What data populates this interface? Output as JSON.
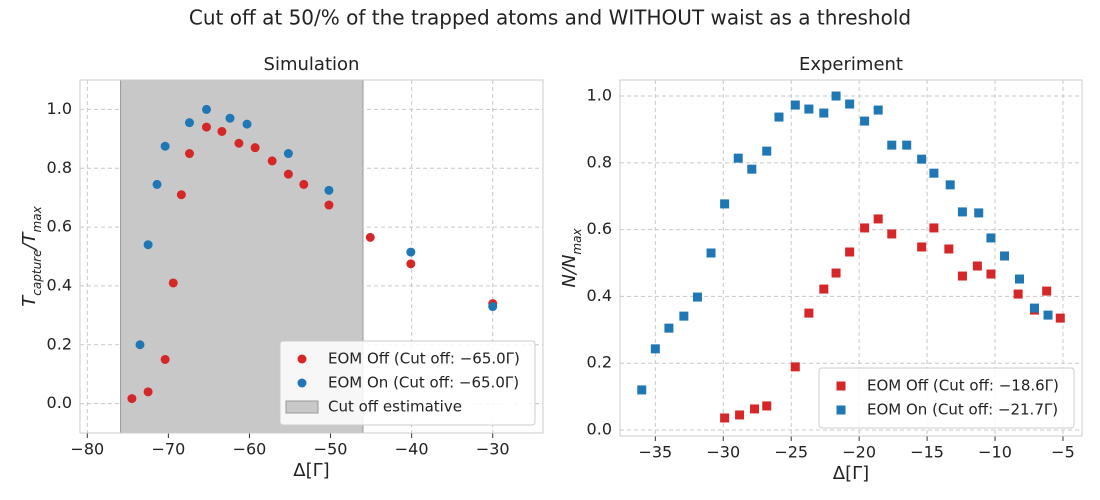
{
  "suptitle": "Cut off at 50/% of the trapped atoms and WITHOUT waist as a threshold",
  "chart_data": [
    {
      "type": "scatter",
      "title": "Simulation",
      "xlabel": "Δ[Γ]",
      "ylabel": [
        "T",
        "capture",
        "/T",
        "max"
      ],
      "xlim": [
        -80.9,
        -23.8
      ],
      "ylim": [
        -0.1,
        1.1
      ],
      "xticks": [
        {
          "value": -80,
          "label": "−80"
        },
        {
          "value": -70,
          "label": "−70"
        },
        {
          "value": -60,
          "label": "−60"
        },
        {
          "value": -50,
          "label": "−50"
        },
        {
          "value": -40,
          "label": "−40"
        },
        {
          "value": -30,
          "label": "−30"
        }
      ],
      "yticks": [
        {
          "value": 0,
          "label": "0.0"
        },
        {
          "value": 0.2,
          "label": "0.2"
        },
        {
          "value": 0.4,
          "label": "0.4"
        },
        {
          "value": 0.6,
          "label": "0.6"
        },
        {
          "value": 0.8,
          "label": "0.8"
        },
        {
          "value": 1.0,
          "label": "1.0"
        }
      ],
      "grid": true,
      "legend": "lower right",
      "marker": "circle",
      "series": [
        {
          "name": "EOM Off (Cut off: −65.0Γ)",
          "color": "#d62728",
          "x": [
            -74.5,
            -72.5,
            -70.4,
            -69.4,
            -68.4,
            -67.4,
            -65.3,
            -63.4,
            -61.3,
            -59.3,
            -57.2,
            -55.2,
            -53.3,
            -50.2,
            -45.1,
            -40.1,
            -30
          ],
          "values": [
            0.017,
            0.04,
            0.15,
            0.41,
            0.71,
            0.85,
            0.94,
            0.925,
            0.885,
            0.87,
            0.825,
            0.78,
            0.745,
            0.675,
            0.565,
            0.475,
            0.34
          ]
        },
        {
          "name": "EOM On (Cut off: −65.0Γ)",
          "color": "#1f77b4",
          "x": [
            -73.5,
            -72.5,
            -71.4,
            -70.4,
            -67.4,
            -65.3,
            -62.4,
            -60.3,
            -55.2,
            -50.2,
            -40.1,
            -30
          ],
          "values": [
            0.2,
            0.54,
            0.745,
            0.875,
            0.955,
            1.0,
            0.97,
            0.95,
            0.85,
            0.725,
            0.515,
            0.33
          ]
        }
      ],
      "spans": [
        {
          "name": "Cut off estimative",
          "xlim": [
            -75.9,
            -46.0
          ],
          "color": "#c8c8c8"
        }
      ]
    },
    {
      "type": "scatter",
      "title": "Experiment",
      "xlabel": "Δ[Γ]",
      "ylabel": [
        "N/N",
        "max"
      ],
      "xlim": [
        -37.6,
        -3.6
      ],
      "ylim": [
        -0.018,
        1.048
      ],
      "xticks": [
        {
          "value": -35,
          "label": "−35"
        },
        {
          "value": -30,
          "label": "−30"
        },
        {
          "value": -25,
          "label": "−25"
        },
        {
          "value": -20,
          "label": "−20"
        },
        {
          "value": -15,
          "label": "−15"
        },
        {
          "value": -10,
          "label": "−10"
        },
        {
          "value": -5,
          "label": "−5"
        }
      ],
      "yticks": [
        {
          "value": 0,
          "label": "0.0"
        },
        {
          "value": 0.2,
          "label": "0.2"
        },
        {
          "value": 0.4,
          "label": "0.4"
        },
        {
          "value": 0.6,
          "label": "0.6"
        },
        {
          "value": 0.8,
          "label": "0.8"
        },
        {
          "value": 1.0,
          "label": "1.0"
        }
      ],
      "grid": true,
      "legend": "lower right",
      "marker": "square",
      "series": [
        {
          "name": "EOM Off (Cut off: −18.6Γ)",
          "color": "#d62728",
          "x": [
            -29.9,
            -28.8,
            -27.7,
            -26.8,
            -24.7,
            -23.7,
            -22.6,
            -21.7,
            -20.7,
            -19.6,
            -18.6,
            -17.6,
            -15.4,
            -14.5,
            -13.4,
            -12.4,
            -11.3,
            -10.3,
            -8.3,
            -7.1,
            -6.2,
            -5.2
          ],
          "values": [
            0.036,
            0.045,
            0.063,
            0.072,
            0.189,
            0.35,
            0.422,
            0.47,
            0.533,
            0.605,
            0.632,
            0.587,
            0.548,
            0.605,
            0.542,
            0.461,
            0.491,
            0.467,
            0.407,
            0.359,
            0.416,
            0.335
          ]
        },
        {
          "name": "EOM On (Cut off: −21.7Γ)",
          "color": "#1f77b4",
          "x": [
            -36.0,
            -35.0,
            -34.0,
            -32.9,
            -31.9,
            -30.9,
            -29.9,
            -28.9,
            -27.9,
            -26.8,
            -25.9,
            -24.7,
            -23.7,
            -22.6,
            -21.7,
            -20.7,
            -19.6,
            -18.6,
            -17.6,
            -16.5,
            -15.4,
            -14.5,
            -13.3,
            -12.4,
            -11.2,
            -10.3,
            -9.3,
            -8.2,
            -7.1,
            -6.1
          ],
          "values": [
            0.12,
            0.243,
            0.305,
            0.341,
            0.398,
            0.53,
            0.677,
            0.814,
            0.781,
            0.835,
            0.937,
            0.973,
            0.961,
            0.949,
            1.0,
            0.976,
            0.925,
            0.958,
            0.853,
            0.853,
            0.811,
            0.769,
            0.734,
            0.653,
            0.65,
            0.575,
            0.521,
            0.452,
            0.365,
            0.344
          ]
        }
      ]
    }
  ]
}
